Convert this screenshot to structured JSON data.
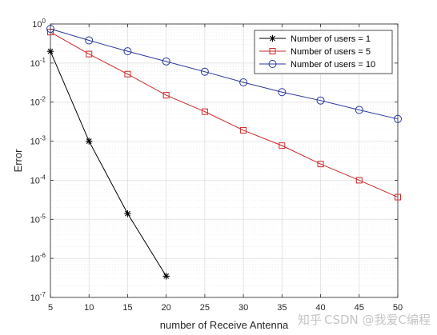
{
  "chart_data": {
    "type": "line",
    "xlabel": "number of Receive Antenna",
    "ylabel": "Error",
    "xlim": [
      5,
      50
    ],
    "ylim": [
      1e-07,
      1
    ],
    "yscale": "log",
    "grid": true,
    "minor_grid": true,
    "legend_position": "top-right",
    "x_ticks": [
      "5",
      "10",
      "15",
      "20",
      "25",
      "30",
      "35",
      "40",
      "45",
      "50"
    ],
    "y_ticks": [
      {
        "base": "10",
        "exp": "0"
      },
      {
        "base": "10",
        "exp": "-1"
      },
      {
        "base": "10",
        "exp": "-2"
      },
      {
        "base": "10",
        "exp": "-3"
      },
      {
        "base": "10",
        "exp": "-4"
      },
      {
        "base": "10",
        "exp": "-5"
      },
      {
        "base": "10",
        "exp": "-6"
      },
      {
        "base": "10",
        "exp": "-7"
      }
    ],
    "series": [
      {
        "name": "Number of users = 1",
        "color": "#000000",
        "marker": "asterisk",
        "x": [
          5,
          10,
          15,
          20
        ],
        "y": [
          0.2,
          0.001,
          1.4e-05,
          3.5e-07
        ]
      },
      {
        "name": "Number of users = 5",
        "color": "#cc2a2a",
        "marker": "square",
        "x": [
          5,
          10,
          15,
          20,
          25,
          30,
          35,
          40,
          45,
          50
        ],
        "y": [
          0.62,
          0.17,
          0.052,
          0.015,
          0.0057,
          0.0019,
          0.00077,
          0.00026,
          0.0001,
          3.7e-05
        ]
      },
      {
        "name": "Number of users = 10",
        "color": "#2b3a9b",
        "marker": "circle",
        "x": [
          5,
          10,
          15,
          20,
          25,
          30,
          35,
          40,
          45,
          50
        ],
        "y": [
          0.75,
          0.38,
          0.2,
          0.11,
          0.06,
          0.032,
          0.018,
          0.011,
          0.0063,
          0.0037
        ]
      }
    ]
  },
  "watermark": "CSDN @我爱C编程",
  "watermark_zhihu": "知乎"
}
